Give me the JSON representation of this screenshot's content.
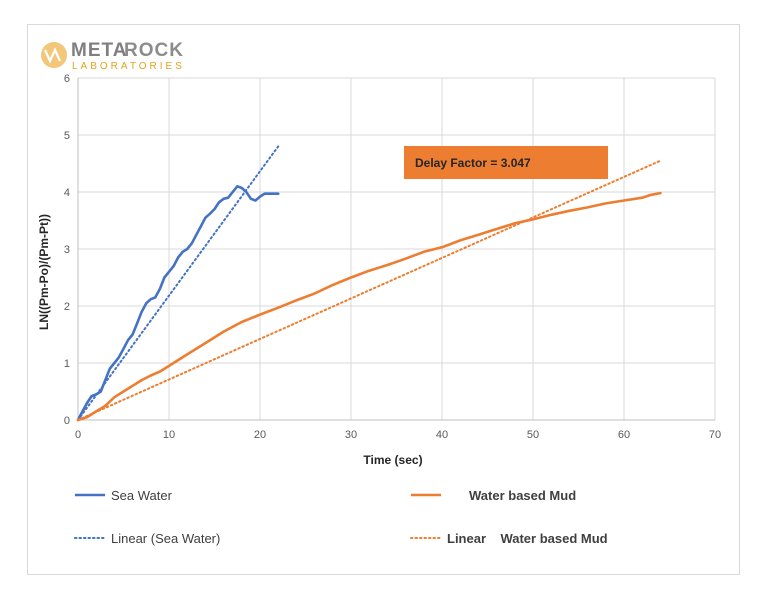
{
  "logo": {
    "word_left": "META",
    "word_right": "ROCK",
    "subtitle": "LABORATORIES",
    "color_left": "#7f7f7f",
    "color_right": "#8c8c8c",
    "color_accent": "#e3a21a"
  },
  "chart_data": {
    "type": "line",
    "title": "",
    "xlabel": "Time (sec)",
    "ylabel": "LN((Pm-Po)/(Pm-Pt))",
    "xlim": [
      0,
      70
    ],
    "ylim": [
      0,
      6
    ],
    "xticks": [
      0,
      10,
      20,
      30,
      40,
      50,
      60,
      70
    ],
    "yticks": [
      0,
      1,
      2,
      3,
      4,
      5,
      6
    ],
    "grid": true,
    "legend_position": "bottom",
    "annotation": {
      "text": "Delay Factor = 3.047",
      "fill": "#ed7d31"
    },
    "series": [
      {
        "name": "Sea Water",
        "style": "solid",
        "color": "#4472c4",
        "x": [
          0,
          0.5,
          1,
          1.5,
          2,
          2.5,
          3,
          3.5,
          4,
          4.5,
          5,
          5.5,
          6,
          6.5,
          7,
          7.5,
          8,
          8.5,
          9,
          9.5,
          10,
          10.5,
          11,
          11.5,
          12,
          12.5,
          13,
          13.5,
          14,
          14.5,
          15,
          15.5,
          16,
          16.5,
          17,
          17.5,
          18,
          18.5,
          19,
          19.5,
          20,
          20.5,
          21,
          21.5,
          22
        ],
        "y": [
          0,
          0.15,
          0.3,
          0.42,
          0.45,
          0.5,
          0.7,
          0.9,
          1.0,
          1.1,
          1.25,
          1.4,
          1.5,
          1.7,
          1.9,
          2.05,
          2.12,
          2.15,
          2.3,
          2.5,
          2.6,
          2.7,
          2.85,
          2.95,
          3.0,
          3.1,
          3.25,
          3.4,
          3.55,
          3.62,
          3.7,
          3.82,
          3.88,
          3.9,
          4.0,
          4.1,
          4.07,
          4.0,
          3.88,
          3.85,
          3.92,
          3.97,
          3.97,
          3.97,
          3.97
        ]
      },
      {
        "name": "Linear (Sea Water)",
        "style": "dotted",
        "color": "#4472c4",
        "x": [
          0,
          22
        ],
        "y": [
          0,
          4.8
        ]
      },
      {
        "name": "Water based Mud",
        "style": "solid",
        "color": "#ed7d31",
        "x": [
          0,
          1,
          2,
          3,
          4,
          5,
          6,
          7,
          8,
          9,
          10,
          12,
          14,
          16,
          18,
          20,
          22,
          24,
          26,
          28,
          30,
          32,
          34,
          36,
          38,
          40,
          42,
          44,
          46,
          48,
          50,
          52,
          54,
          56,
          58,
          60,
          62,
          63,
          64
        ],
        "y": [
          0,
          0.05,
          0.15,
          0.25,
          0.4,
          0.5,
          0.6,
          0.7,
          0.78,
          0.85,
          0.95,
          1.15,
          1.35,
          1.55,
          1.72,
          1.85,
          1.97,
          2.1,
          2.22,
          2.37,
          2.5,
          2.62,
          2.72,
          2.83,
          2.95,
          3.03,
          3.15,
          3.25,
          3.35,
          3.45,
          3.52,
          3.6,
          3.67,
          3.73,
          3.8,
          3.85,
          3.9,
          3.95,
          3.98
        ]
      },
      {
        "name": "Linear    Water based Mud",
        "style": "dotted",
        "color": "#ed7d31",
        "x": [
          0,
          64
        ],
        "y": [
          0,
          4.55
        ]
      }
    ]
  }
}
